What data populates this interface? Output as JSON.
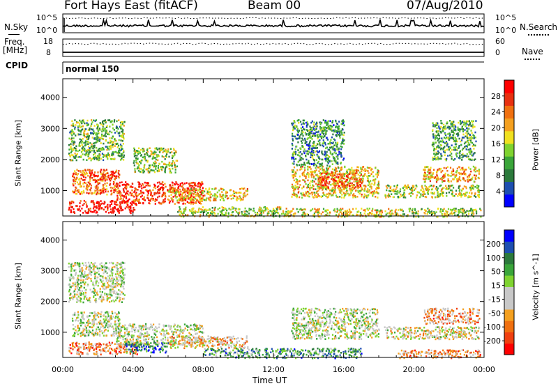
{
  "header": {
    "radar": "Fort Hays East (fitACF)",
    "beam": "Beam 00",
    "date": "07/Aug/2010"
  },
  "strip1": {
    "left_label": "N.Sky",
    "right_label": "N.Search",
    "left_ticks": [
      "10^5",
      "10^0"
    ],
    "right_ticks": [
      "10^5",
      "10^0"
    ]
  },
  "strip2": {
    "left_label_1": "Freq.",
    "left_label_2": "[MHz]",
    "right_label": "Nave",
    "left_ticks": [
      "18",
      "8"
    ],
    "right_ticks": [
      "60",
      "0"
    ]
  },
  "cpid": {
    "label": "CPID",
    "value": "normal 150"
  },
  "chart_data": [
    {
      "type": "heatmap",
      "name": "Power",
      "ylabel": "Slant Range [km]",
      "xlabel": "Time UT",
      "x_ticks": [
        "00:00",
        "04:00",
        "08:00",
        "12:00",
        "16:00",
        "20:00",
        "00:00"
      ],
      "y_ticks": [
        1000,
        2000,
        3000,
        4000
      ],
      "ylim": [
        180,
        4600
      ],
      "xlim_hours": [
        0,
        24
      ],
      "colorbar": {
        "label": "Power [dB]",
        "ticks": [
          "28",
          "24",
          "20",
          "16",
          "12",
          "8",
          "4"
        ],
        "colors": [
          "#0000ff",
          "#1e4fb0",
          "#2c7a3c",
          "#3aa53a",
          "#7fd330",
          "#f0e020",
          "#f4a020",
          "#f07010",
          "#e83010",
          "#ff0000"
        ]
      },
      "regions": [
        {
          "t": [
            0.3,
            4.2
          ],
          "r": [
            300,
            700
          ],
          "v": 0.95
        },
        {
          "t": [
            3.0,
            8.0
          ],
          "r": [
            600,
            1300
          ],
          "v": 0.85
        },
        {
          "t": [
            6.0,
            10.5
          ],
          "r": [
            700,
            1100
          ],
          "v": 0.6
        },
        {
          "t": [
            0.5,
            3.2
          ],
          "r": [
            900,
            1700
          ],
          "v": 0.75
        },
        {
          "t": [
            1.5,
            3.0
          ],
          "r": [
            1350,
            1550
          ],
          "v": 0.9
        },
        {
          "t": [
            0.3,
            3.5
          ],
          "r": [
            2000,
            3300
          ],
          "v": 0.4
        },
        {
          "t": [
            4.0,
            6.5
          ],
          "r": [
            1600,
            2400
          ],
          "v": 0.45
        },
        {
          "t": [
            6.5,
            12.5
          ],
          "r": [
            180,
            500
          ],
          "v": 0.5
        },
        {
          "t": [
            12.5,
            19.0
          ],
          "r": [
            180,
            450
          ],
          "v": 0.55
        },
        {
          "t": [
            13.0,
            18.0
          ],
          "r": [
            800,
            1800
          ],
          "v": 0.6
        },
        {
          "t": [
            14.5,
            17.0
          ],
          "r": [
            1100,
            1600
          ],
          "v": 0.8
        },
        {
          "t": [
            13.0,
            16.0
          ],
          "r": [
            1800,
            3300
          ],
          "v": 0.3
        },
        {
          "t": [
            18.3,
            23.7
          ],
          "r": [
            800,
            1200
          ],
          "v": 0.5
        },
        {
          "t": [
            20.5,
            23.7
          ],
          "r": [
            1300,
            1800
          ],
          "v": 0.65
        },
        {
          "t": [
            21.0,
            23.5
          ],
          "r": [
            2000,
            3300
          ],
          "v": 0.35
        },
        {
          "t": [
            19.0,
            23.8
          ],
          "r": [
            180,
            450
          ],
          "v": 0.45
        }
      ]
    },
    {
      "type": "heatmap",
      "name": "Velocity",
      "ylabel": "Slant Range [km]",
      "xlabel": "Time UT",
      "x_ticks": [
        "00:00",
        "04:00",
        "08:00",
        "12:00",
        "16:00",
        "20:00",
        "00:00"
      ],
      "y_ticks": [
        1000,
        2000,
        3000,
        4000
      ],
      "ylim": [
        180,
        4600
      ],
      "xlim_hours": [
        0,
        24
      ],
      "colorbar": {
        "label": "Velocity [m s^-1]",
        "ticks": [
          "200",
          "100",
          "50",
          "15",
          "-15",
          "-50",
          "-100",
          "-200"
        ],
        "colors": [
          "#ff0000",
          "#f04010",
          "#f07010",
          "#f4a020",
          "#c8c8c8",
          "#c8c8c8",
          "#7fd330",
          "#3aa53a",
          "#2c7a3c",
          "#1e4fb0",
          "#0000ff"
        ]
      },
      "regions": [
        {
          "t": [
            0.3,
            4.2
          ],
          "r": [
            300,
            700
          ],
          "v": 0.25
        },
        {
          "t": [
            3.0,
            8.0
          ],
          "r": [
            600,
            1300
          ],
          "v": 0.5
        },
        {
          "t": [
            3.5,
            6.0
          ],
          "r": [
            350,
            700
          ],
          "v": 0.8
        },
        {
          "t": [
            6.0,
            10.5
          ],
          "r": [
            500,
            900
          ],
          "v": 0.35
        },
        {
          "t": [
            0.5,
            3.2
          ],
          "r": [
            900,
            1700
          ],
          "v": 0.5
        },
        {
          "t": [
            0.3,
            3.5
          ],
          "r": [
            2000,
            3300
          ],
          "v": 0.5
        },
        {
          "t": [
            8.0,
            17.0
          ],
          "r": [
            180,
            500
          ],
          "v": 0.7
        },
        {
          "t": [
            13.0,
            18.0
          ],
          "r": [
            800,
            1800
          ],
          "v": 0.5
        },
        {
          "t": [
            18.3,
            23.7
          ],
          "r": [
            800,
            1200
          ],
          "v": 0.45
        },
        {
          "t": [
            20.5,
            23.7
          ],
          "r": [
            1300,
            1800
          ],
          "v": 0.3
        },
        {
          "t": [
            19.0,
            23.8
          ],
          "r": [
            180,
            450
          ],
          "v": 0.3
        }
      ]
    }
  ]
}
